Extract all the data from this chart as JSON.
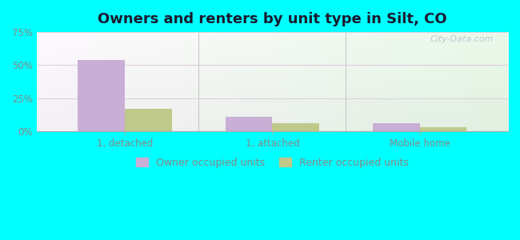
{
  "title": "Owners and renters by unit type in Silt, CO",
  "categories": [
    "1, detached",
    "1, attached",
    "Mobile home"
  ],
  "owner_values": [
    54,
    11,
    6
  ],
  "renter_values": [
    17,
    6,
    3
  ],
  "owner_color": "#c9aed6",
  "renter_color": "#bfc98a",
  "ylim": [
    0,
    75
  ],
  "yticks": [
    0,
    25,
    50,
    75
  ],
  "ytick_labels": [
    "0%",
    "25%",
    "50%",
    "75%"
  ],
  "bar_width": 0.32,
  "background_color": "#00ffff",
  "legend_owner": "Owner occupied units",
  "legend_renter": "Renter occupied units",
  "title_fontsize": 13,
  "tick_fontsize": 8.5,
  "legend_fontsize": 9,
  "watermark": "City-Data.com",
  "grid_color": "#ddccdd",
  "tick_color": "#888888",
  "title_color": "#1a1a2e"
}
